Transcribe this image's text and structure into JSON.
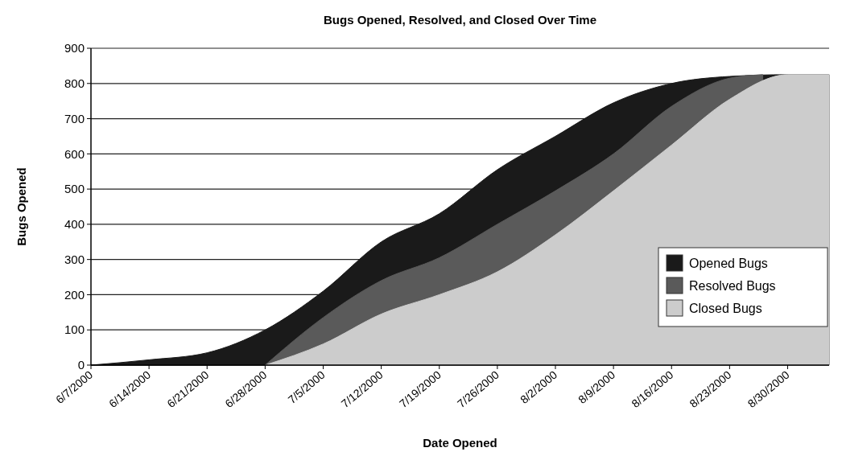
{
  "chart_data": {
    "type": "area",
    "title": "Bugs Opened, Resolved, and Closed Over Time",
    "xlabel": "Date Opened",
    "ylabel": "Bugs Opened",
    "x": [
      "2000-06-07",
      "2000-06-14",
      "2000-06-21",
      "2000-06-28",
      "2000-07-05",
      "2000-07-12",
      "2000-07-19",
      "2000-07-26",
      "2000-08-02",
      "2000-08-09",
      "2000-08-16",
      "2000-08-23",
      "2000-08-30",
      "2000-09-04"
    ],
    "series": [
      {
        "name": "Opened Bugs",
        "color": "#1a1a1a",
        "values": [
          0,
          15,
          35,
          100,
          210,
          350,
          430,
          555,
          650,
          745,
          800,
          820,
          825,
          825
        ]
      },
      {
        "name": "Resolved Bugs",
        "color": "#5a5a5a",
        "x": [
          "2000-06-28",
          "2000-07-05",
          "2000-07-12",
          "2000-07-19",
          "2000-07-26",
          "2000-08-02",
          "2000-08-09",
          "2000-08-16",
          "2000-08-23",
          "2000-08-27"
        ],
        "values": [
          0,
          135,
          240,
          305,
          400,
          495,
          600,
          735,
          815,
          825
        ]
      },
      {
        "name": "Closed Bugs",
        "color": "#cccccc",
        "x": [
          "2000-06-28",
          "2000-07-05",
          "2000-07-12",
          "2000-07-19",
          "2000-07-26",
          "2000-08-02",
          "2000-08-09",
          "2000-08-16",
          "2000-08-23",
          "2000-08-30",
          "2000-09-04"
        ],
        "values": [
          0,
          60,
          145,
          200,
          265,
          370,
          495,
          625,
          755,
          825,
          825
        ]
      }
    ],
    "xlim": [
      "2000-06-07",
      "2000-09-04"
    ],
    "xticks": [
      {
        "value": "2000-06-07",
        "label": "6/7/2000"
      },
      {
        "value": "2000-06-14",
        "label": "6/14/2000"
      },
      {
        "value": "2000-06-21",
        "label": "6/21/2000"
      },
      {
        "value": "2000-06-28",
        "label": "6/28/2000"
      },
      {
        "value": "2000-07-05",
        "label": "7/5/2000"
      },
      {
        "value": "2000-07-12",
        "label": "7/12/2000"
      },
      {
        "value": "2000-07-19",
        "label": "7/19/2000"
      },
      {
        "value": "2000-07-26",
        "label": "7/26/2000"
      },
      {
        "value": "2000-08-02",
        "label": "8/2/2000"
      },
      {
        "value": "2000-08-09",
        "label": "8/9/2000"
      },
      {
        "value": "2000-08-16",
        "label": "8/16/2000"
      },
      {
        "value": "2000-08-23",
        "label": "8/23/2000"
      },
      {
        "value": "2000-08-30",
        "label": "8/30/2000"
      }
    ],
    "ylim": [
      0,
      900
    ],
    "yticks": [
      0,
      100,
      200,
      300,
      400,
      500,
      600,
      700,
      800,
      900
    ],
    "grid": "y",
    "legend": "bottom right"
  }
}
